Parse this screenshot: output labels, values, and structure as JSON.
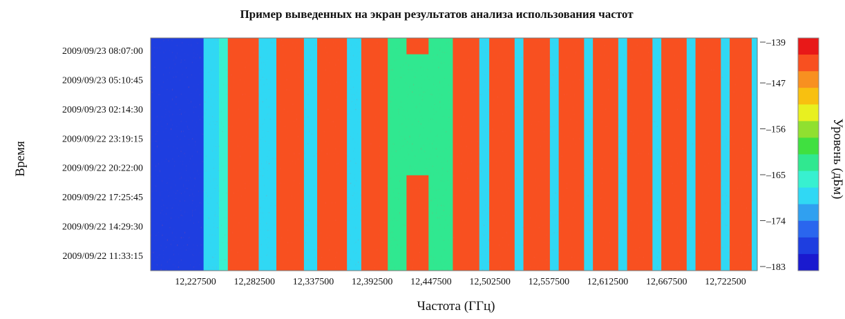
{
  "chart_data": {
    "type": "heatmap",
    "title": "Пример выведенных на экран результатов анализа использования частот",
    "xlabel": "Частота (ГГц)",
    "ylabel": "Время",
    "colorbar_label": "Уровень (дБм)",
    "x_tick_labels": [
      "12,227500",
      "12,282500",
      "12,337500",
      "12,392500",
      "12,447500",
      "12,502500",
      "12,557500",
      "12,612500",
      "12,667500",
      "12,722500"
    ],
    "y_tick_labels": [
      "2009/09/23 08:07:00",
      "2009/09/23 05:10:45",
      "2009/09/23 02:14:30",
      "2009/09/22 23:19:15",
      "2009/09/22 20:22:00",
      "2009/09/22 17:25:45",
      "2009/09/22 14:29:30",
      "2009/09/22 11:33:15"
    ],
    "colorbar_ticks": [
      -139,
      -147,
      -156,
      -165,
      -174,
      -183
    ],
    "colorbar_range": [
      -183,
      -139
    ],
    "colormap": [
      "#1a1acf",
      "#1e3ee0",
      "#2a66ee",
      "#30a0f0",
      "#30d8f4",
      "#38f0d0",
      "#30e890",
      "#40e040",
      "#90e030",
      "#e8f020",
      "#f8c010",
      "#f89020",
      "#f85020",
      "#e81818"
    ],
    "x_range": [
      12.2,
      12.75
    ],
    "bands": [
      {
        "x0": 12.2,
        "x1": 12.248,
        "level": -181
      },
      {
        "x0": 12.248,
        "x1": 12.262,
        "level": -170
      },
      {
        "x0": 12.262,
        "x1": 12.27,
        "level": -166
      },
      {
        "x0": 12.27,
        "x1": 12.298,
        "level": -142
      },
      {
        "x0": 12.298,
        "x1": 12.314,
        "level": -168
      },
      {
        "x0": 12.314,
        "x1": 12.339,
        "level": -142
      },
      {
        "x0": 12.339,
        "x1": 12.351,
        "level": -168
      },
      {
        "x0": 12.351,
        "x1": 12.378,
        "level": -142
      },
      {
        "x0": 12.378,
        "x1": 12.391,
        "level": -168
      },
      {
        "x0": 12.391,
        "x1": 12.415,
        "level": -142
      },
      {
        "x0": 12.415,
        "x1": 12.474,
        "level": -164
      },
      {
        "x0": 12.474,
        "x1": 12.498,
        "level": -142
      },
      {
        "x0": 12.498,
        "x1": 12.507,
        "level": -168
      },
      {
        "x0": 12.507,
        "x1": 12.53,
        "level": -142
      },
      {
        "x0": 12.53,
        "x1": 12.538,
        "level": -168
      },
      {
        "x0": 12.538,
        "x1": 12.562,
        "level": -142
      },
      {
        "x0": 12.562,
        "x1": 12.57,
        "level": -168
      },
      {
        "x0": 12.57,
        "x1": 12.593,
        "level": -142
      },
      {
        "x0": 12.593,
        "x1": 12.601,
        "level": -168
      },
      {
        "x0": 12.601,
        "x1": 12.624,
        "level": -142
      },
      {
        "x0": 12.624,
        "x1": 12.632,
        "level": -168
      },
      {
        "x0": 12.632,
        "x1": 12.655,
        "level": -142
      },
      {
        "x0": 12.655,
        "x1": 12.663,
        "level": -168
      },
      {
        "x0": 12.663,
        "x1": 12.686,
        "level": -142
      },
      {
        "x0": 12.686,
        "x1": 12.694,
        "level": -168
      },
      {
        "x0": 12.694,
        "x1": 12.717,
        "level": -142
      },
      {
        "x0": 12.717,
        "x1": 12.725,
        "level": -168
      },
      {
        "x0": 12.725,
        "x1": 12.745,
        "level": -142
      },
      {
        "x0": 12.745,
        "x1": 12.75,
        "level": -170
      }
    ],
    "signal_events": [
      {
        "x0": 12.432,
        "x1": 12.452,
        "t0": 0.0,
        "t1": 0.07,
        "level": -142
      },
      {
        "x0": 12.432,
        "x1": 12.452,
        "t0": 0.59,
        "t1": 1.0,
        "level": -142
      }
    ]
  }
}
